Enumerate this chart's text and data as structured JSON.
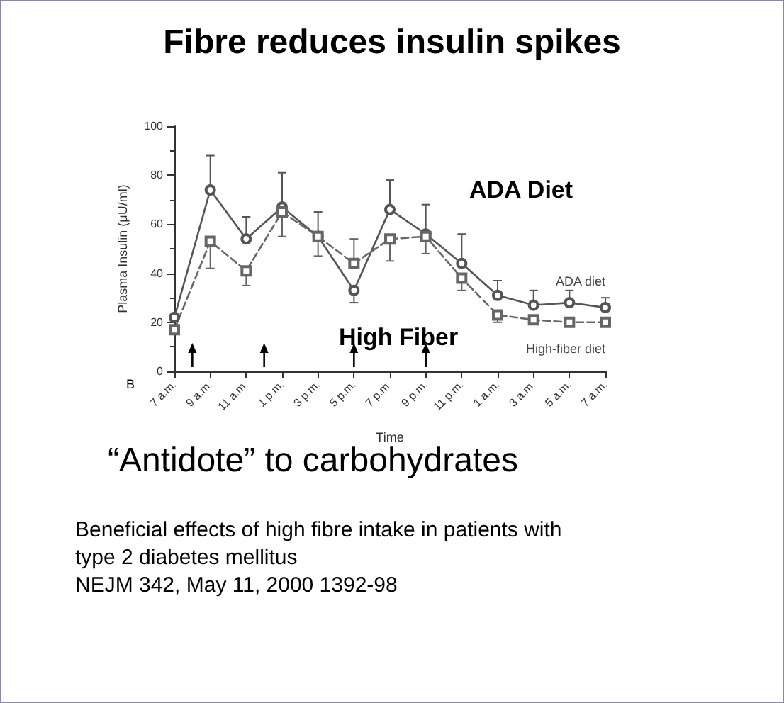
{
  "chart_data": {
    "type": "line",
    "title": "Fibre reduces insulin spikes",
    "subtitle": "“Antidote” to carbohydrates",
    "xlabel": "Time",
    "ylabel": "Plasma Insulin (μU/ml)",
    "categories": [
      "7 a.m.",
      "9 a.m.",
      "11 a.m.",
      "1 p.m.",
      "3 p.m.",
      "5 p.m.",
      "7 p.m.",
      "9 p.m.",
      "11 p.m.",
      "1 a.m.",
      "3 a.m.",
      "5 a.m.",
      "7 a.m."
    ],
    "series": [
      {
        "name": "ADA diet",
        "color": "#555555",
        "marker": "circle",
        "line_style": "solid",
        "values": [
          22,
          74,
          54,
          67,
          55,
          33,
          66,
          56,
          44,
          31,
          27,
          28,
          26
        ],
        "errors": [
          null,
          [
            74,
            88
          ],
          [
            54,
            63
          ],
          [
            67,
            81
          ],
          [
            55,
            65
          ],
          [
            28,
            33
          ],
          [
            66,
            78
          ],
          [
            56,
            68
          ],
          [
            44,
            56
          ],
          [
            31,
            37
          ],
          [
            27,
            33
          ],
          [
            28,
            33
          ],
          [
            26,
            30
          ]
        ]
      },
      {
        "name": "High-fiber diet",
        "color": "#666666",
        "marker": "square",
        "line_style": "dashed",
        "values": [
          17,
          53,
          41,
          65,
          55,
          44,
          54,
          55,
          38,
          23,
          21,
          20,
          20
        ],
        "errors": [
          null,
          [
            42,
            53
          ],
          [
            35,
            41
          ],
          [
            55,
            65
          ],
          [
            47,
            55
          ],
          [
            44,
            54
          ],
          [
            45,
            54
          ],
          [
            48,
            55
          ],
          [
            33,
            38
          ],
          [
            20,
            23
          ],
          null,
          null,
          null
        ]
      }
    ],
    "ylim": [
      0,
      100
    ],
    "yticks": [
      0,
      20,
      40,
      60,
      80,
      100
    ],
    "grid": false,
    "legend": false,
    "annotations": [
      "ADA Diet",
      "High Fiber",
      "B",
      "Beneficial effects of high fibre intake in patients with type 2 diabetes mellitus",
      "NEJM 342, May 11, 2000 1392-98"
    ]
  }
}
